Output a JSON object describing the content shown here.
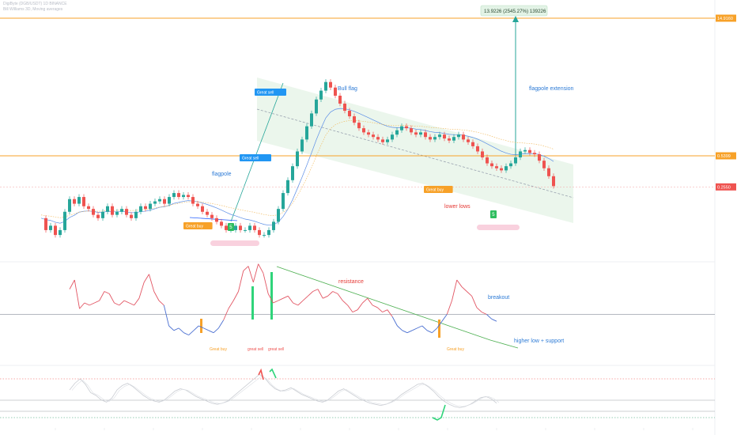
{
  "header": {
    "line1": "DigiByte (DGB/USDT) 1D BINANCE",
    "line2": "Bill Williams 3D, Moving averages"
  },
  "colors": {
    "orange": "#f7a128",
    "green": "#26a69a",
    "red": "#ef5350",
    "blue": "#2962ff",
    "channel": "#e8f5e9",
    "label_blue": "#2196f3",
    "annot_blue": "#2d7bd6",
    "annot_red": "#e53935"
  },
  "chart_data": [
    {
      "type": "candlestick",
      "y_scale": "log",
      "right_axis_labels": [
        "14.9160",
        "0.5399",
        "0.2550"
      ],
      "levels": {
        "upper_orange": 14.916,
        "lower_orange": 0.5399,
        "current": 0.255
      },
      "measure_box": "13.9226 (2545.27%) 139226",
      "annotations": {
        "bull_flag": "Bull flag",
        "flagpole": "flagpole",
        "flagpole_extension": "flagpole extension",
        "lower_lows": "lower lows"
      },
      "signals": [
        {
          "text": "Great buy",
          "kind": "buy"
        },
        {
          "text": "Great sell",
          "kind": "sell"
        },
        {
          "text": "Great sell",
          "kind": "sell"
        },
        {
          "text": "Great buy",
          "kind": "buy"
        }
      ],
      "markers": [
        "5",
        "5"
      ],
      "candle_path": [
        0.12,
        0.09,
        0.1,
        0.08,
        0.09,
        0.14,
        0.19,
        0.17,
        0.2,
        0.16,
        0.15,
        0.13,
        0.12,
        0.14,
        0.16,
        0.13,
        0.14,
        0.15,
        0.13,
        0.12,
        0.14,
        0.16,
        0.15,
        0.17,
        0.18,
        0.19,
        0.17,
        0.2,
        0.22,
        0.2,
        0.21,
        0.2,
        0.17,
        0.16,
        0.14,
        0.13,
        0.12,
        0.11,
        0.1,
        0.09,
        0.09,
        0.1,
        0.09,
        0.09,
        0.1,
        0.09,
        0.08,
        0.08,
        0.09,
        0.11,
        0.15,
        0.22,
        0.3,
        0.42,
        0.6,
        0.8,
        1.1,
        1.5,
        2.1,
        2.6,
        3.2,
        2.8,
        2.3,
        1.9,
        1.6,
        1.4,
        1.2,
        1.05,
        0.95,
        0.9,
        0.85,
        0.8,
        0.75,
        0.8,
        0.9,
        1.0,
        1.1,
        1.05,
        0.95,
        0.9,
        0.95,
        0.85,
        0.8,
        0.85,
        0.9,
        0.82,
        0.78,
        0.85,
        0.9,
        0.8,
        0.75,
        0.68,
        0.6,
        0.52,
        0.45,
        0.42,
        0.4,
        0.38,
        0.42,
        0.45,
        0.52,
        0.6,
        0.62,
        0.58,
        0.56,
        0.48,
        0.4,
        0.33,
        0.26
      ]
    },
    {
      "type": "line",
      "title": "",
      "labels": {
        "resistance": "resistance",
        "breakout": "breakout",
        "higher_low": "higher low + support"
      },
      "signals": [
        "Great buy",
        "great sell",
        "great sell",
        "Great buy"
      ],
      "values": [
        72,
        80,
        55,
        60,
        58,
        60,
        62,
        70,
        68,
        60,
        58,
        62,
        60,
        58,
        64,
        78,
        85,
        70,
        62,
        58,
        40,
        36,
        38,
        34,
        32,
        36,
        40,
        38,
        36,
        34,
        38,
        45,
        55,
        62,
        70,
        88,
        92,
        78,
        94,
        86,
        68,
        60,
        62,
        64,
        66,
        60,
        58,
        62,
        66,
        70,
        72,
        64,
        66,
        70,
        68,
        62,
        58,
        52,
        54,
        60,
        64,
        58,
        56,
        52,
        54,
        48,
        40,
        36,
        34,
        36,
        38,
        40,
        36,
        34,
        38,
        44,
        50,
        62,
        80,
        74,
        70,
        66,
        56,
        52,
        50,
        46,
        44
      ]
    },
    {
      "type": "line",
      "title": "",
      "values": [
        60,
        72,
        80,
        70,
        55,
        50,
        42,
        38,
        45,
        60,
        68,
        72,
        66,
        58,
        50,
        44,
        40,
        38,
        42,
        50,
        58,
        62,
        60,
        54,
        48,
        44,
        40,
        36,
        34,
        36,
        40,
        48,
        56,
        64,
        72,
        80,
        88,
        82,
        70,
        62,
        58,
        60,
        64,
        58,
        52,
        48,
        44,
        40,
        38,
        42,
        50,
        58,
        62,
        56,
        50,
        44,
        40,
        36,
        34,
        32,
        34,
        38,
        44,
        52,
        58,
        64,
        70,
        72,
        66,
        58,
        48,
        40,
        34,
        30,
        28,
        30,
        34,
        40,
        46,
        48,
        44,
        36
      ]
    }
  ]
}
